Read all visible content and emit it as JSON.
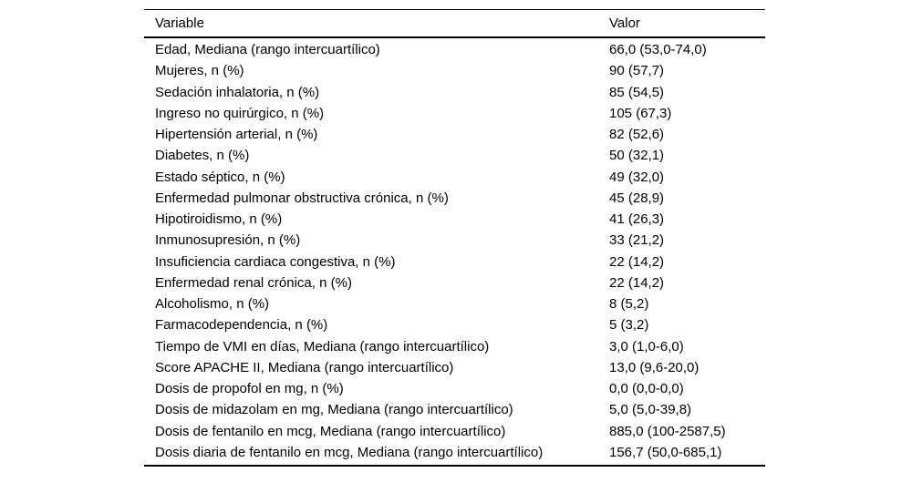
{
  "page": {
    "background": "#ffffff",
    "text_color": "#000000",
    "rule_color": "#000000"
  },
  "table": {
    "columns": [
      {
        "label": "Variable"
      },
      {
        "label": "Valor"
      }
    ],
    "rows": [
      {
        "variable": "Edad, Mediana (rango intercuartílico)",
        "valor": "66,0 (53,0-74,0)"
      },
      {
        "variable": "Mujeres, n (%)",
        "valor": "90 (57,7)"
      },
      {
        "variable": "Sedación inhalatoria, n (%)",
        "valor": "85 (54,5)"
      },
      {
        "variable": "Ingreso no quirúrgico, n (%)",
        "valor": "105 (67,3)"
      },
      {
        "variable": "Hipertensión arterial, n (%)",
        "valor": "82 (52,6)"
      },
      {
        "variable": "Diabetes, n (%)",
        "valor": "50 (32,1)"
      },
      {
        "variable": "Estado séptico, n (%)",
        "valor": "49 (32,0)"
      },
      {
        "variable": "Enfermedad pulmonar obstructiva crónica, n (%)",
        "valor": "45 (28,9)"
      },
      {
        "variable": "Hipotiroidismo, n (%)",
        "valor": "41 (26,3)"
      },
      {
        "variable": "Inmunosupresión, n (%)",
        "valor": "33 (21,2)"
      },
      {
        "variable": "Insuficiencia cardiaca congestiva, n (%)",
        "valor": "22 (14,2)"
      },
      {
        "variable": "Enfermedad renal crónica, n (%)",
        "valor": "22 (14,2)"
      },
      {
        "variable": "Alcoholismo, n (%)",
        "valor": "8 (5,2)"
      },
      {
        "variable": "Farmacodependencia, n (%)",
        "valor": "5 (3,2)"
      },
      {
        "variable": "Tiempo de VMI en días, Mediana (rango intercuartílico)",
        "valor": "3,0 (1,0-6,0)"
      },
      {
        "variable": "Score APACHE II, Mediana (rango intercuartílico)",
        "valor": "13,0 (9,6-20,0)"
      },
      {
        "variable": "Dosis de propofol en mg, n (%)",
        "valor": "0,0 (0,0-0,0)"
      },
      {
        "variable": "Dosis de midazolam en mg, Mediana (rango intercuartílico)",
        "valor": "5,0 (5,0-39,8)"
      },
      {
        "variable": "Dosis de fentanilo en mcg, Mediana (rango intercuartílico)",
        "valor": "885,0 (100-2587,5)"
      },
      {
        "variable": "Dosis diaria de fentanilo en mcg, Mediana (rango intercuartílico)",
        "valor": "156,7 (50,0-685,1)"
      }
    ]
  }
}
